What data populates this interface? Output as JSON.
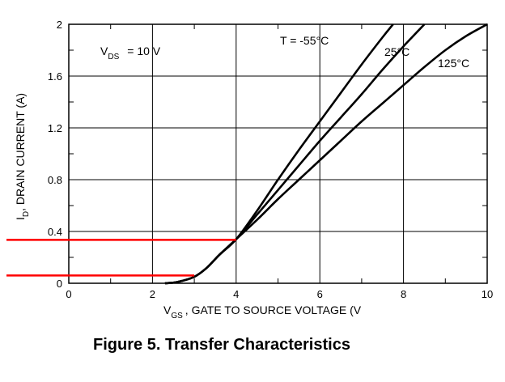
{
  "chart_data": {
    "type": "line",
    "title": "Figure 5. Transfer Characteristics",
    "xlabel": {
      "prefix": "V",
      "sub": "GS",
      "text": ", GATE TO SOURCE VOLTAGE (V"
    },
    "ylabel": {
      "prefix": "I",
      "sub": "D",
      "text": ", DRAIN CURRENT (A)"
    },
    "xlim": [
      0,
      10
    ],
    "ylim": [
      0,
      2
    ],
    "x_ticks": [
      "0",
      "2",
      "4",
      "6",
      "8",
      "10"
    ],
    "y_ticks": [
      "0",
      "0.4",
      "0.8",
      "1.2",
      "1.6",
      "2"
    ],
    "grid": true,
    "annotations": {
      "vds": {
        "prefix": "V",
        "sub": "DS",
        "text": "= 10 V"
      },
      "t_minus55": "T   = -55°C",
      "t_25": "25°C",
      "t_125": "125°C"
    },
    "series": [
      {
        "name": "T = -55°C",
        "x": [
          2.3,
          2.6,
          3.0,
          3.3,
          3.6,
          4.0,
          4.5,
          5.0,
          5.5,
          6.0,
          6.5,
          7.0,
          7.5,
          7.75
        ],
        "y": [
          0.0,
          0.01,
          0.05,
          0.12,
          0.22,
          0.34,
          0.56,
          0.8,
          1.03,
          1.25,
          1.47,
          1.69,
          1.9,
          2.0
        ]
      },
      {
        "name": "25°C",
        "x": [
          2.3,
          2.6,
          3.0,
          3.3,
          3.6,
          4.0,
          4.5,
          5.0,
          5.5,
          6.0,
          6.5,
          7.0,
          7.5,
          8.0,
          8.5
        ],
        "y": [
          0.0,
          0.01,
          0.05,
          0.12,
          0.22,
          0.34,
          0.53,
          0.72,
          0.91,
          1.1,
          1.28,
          1.46,
          1.65,
          1.83,
          2.0
        ]
      },
      {
        "name": "125°C",
        "x": [
          2.3,
          2.6,
          3.0,
          3.3,
          3.6,
          4.0,
          4.5,
          5.0,
          5.5,
          6.0,
          6.5,
          7.0,
          7.5,
          8.0,
          8.5,
          9.0,
          9.5,
          10.0
        ],
        "y": [
          0.0,
          0.01,
          0.05,
          0.12,
          0.22,
          0.34,
          0.49,
          0.65,
          0.8,
          0.95,
          1.1,
          1.25,
          1.39,
          1.53,
          1.67,
          1.8,
          1.91,
          2.0
        ]
      }
    ],
    "highlight_lines": [
      {
        "color": "#ff0000",
        "x": [
          -1.5,
          4.0
        ],
        "y": [
          0.335,
          0.335
        ]
      },
      {
        "color": "#ff0000",
        "x": [
          -1.5,
          3.0
        ],
        "y": [
          0.06,
          0.06
        ]
      }
    ]
  }
}
